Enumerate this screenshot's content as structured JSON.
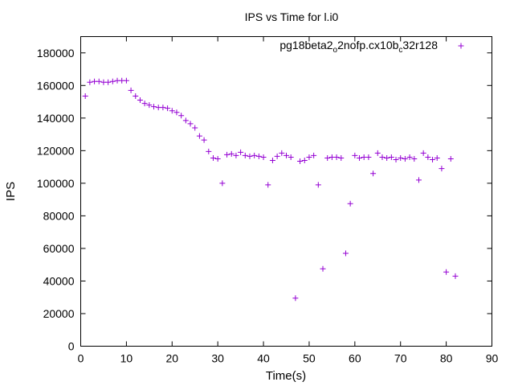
{
  "chart_data": {
    "type": "scatter",
    "title": "IPS vs Time for l.i0",
    "xlabel": "Time(s)",
    "ylabel": "IPS",
    "xlim": [
      0,
      90
    ],
    "ylim": [
      0,
      190000
    ],
    "xticks": [
      0,
      10,
      20,
      30,
      40,
      50,
      60,
      70,
      80,
      90
    ],
    "yticks": [
      0,
      20000,
      40000,
      60000,
      80000,
      100000,
      120000,
      140000,
      160000,
      180000
    ],
    "grid": false,
    "legend_position": "top-right",
    "marker": "plus",
    "series": [
      {
        "name": "pg18beta2_o2nofp.cx10b_c32r128",
        "legend_parts": [
          "pg18beta2",
          "o",
          "2nofp.cx10b",
          "c",
          "32r128"
        ],
        "color": "#9400d3",
        "points": [
          [
            1,
            153500
          ],
          [
            2,
            162000
          ],
          [
            3,
            162500
          ],
          [
            4,
            162500
          ],
          [
            5,
            162000
          ],
          [
            6,
            162000
          ],
          [
            7,
            162500
          ],
          [
            8,
            163000
          ],
          [
            9,
            163000
          ],
          [
            10,
            163000
          ],
          [
            11,
            157000
          ],
          [
            12,
            153500
          ],
          [
            13,
            151000
          ],
          [
            14,
            149000
          ],
          [
            15,
            148000
          ],
          [
            16,
            147000
          ],
          [
            17,
            146500
          ],
          [
            18,
            146500
          ],
          [
            19,
            146000
          ],
          [
            20,
            144500
          ],
          [
            21,
            143500
          ],
          [
            22,
            141500
          ],
          [
            23,
            138500
          ],
          [
            24,
            136500
          ],
          [
            25,
            134000
          ],
          [
            26,
            129000
          ],
          [
            27,
            126500
          ],
          [
            28,
            119500
          ],
          [
            29,
            115500
          ],
          [
            30,
            115000
          ],
          [
            31,
            100000
          ],
          [
            32,
            117500
          ],
          [
            33,
            118000
          ],
          [
            34,
            117000
          ],
          [
            35,
            119000
          ],
          [
            36,
            117000
          ],
          [
            37,
            116500
          ],
          [
            38,
            117000
          ],
          [
            39,
            116500
          ],
          [
            40,
            116000
          ],
          [
            41,
            99000
          ],
          [
            42,
            114000
          ],
          [
            43,
            116500
          ],
          [
            44,
            118500
          ],
          [
            45,
            117000
          ],
          [
            46,
            116000
          ],
          [
            47,
            29500
          ],
          [
            48,
            113500
          ],
          [
            49,
            114000
          ],
          [
            50,
            116000
          ],
          [
            51,
            117000
          ],
          [
            52,
            99000
          ],
          [
            53,
            47500
          ],
          [
            54,
            115500
          ],
          [
            55,
            116000
          ],
          [
            56,
            116000
          ],
          [
            57,
            115500
          ],
          [
            58,
            57000
          ],
          [
            59,
            87500
          ],
          [
            60,
            117000
          ],
          [
            61,
            115500
          ],
          [
            62,
            116000
          ],
          [
            63,
            116000
          ],
          [
            64,
            106000
          ],
          [
            65,
            118500
          ],
          [
            66,
            116000
          ],
          [
            67,
            115500
          ],
          [
            68,
            116000
          ],
          [
            69,
            114500
          ],
          [
            70,
            115500
          ],
          [
            71,
            115000
          ],
          [
            72,
            116000
          ],
          [
            73,
            115000
          ],
          [
            74,
            102000
          ],
          [
            75,
            118500
          ],
          [
            76,
            116000
          ],
          [
            77,
            114500
          ],
          [
            78,
            115500
          ],
          [
            79,
            109000
          ],
          [
            80,
            45500
          ],
          [
            81,
            115000
          ],
          [
            82,
            43000
          ]
        ]
      }
    ]
  }
}
